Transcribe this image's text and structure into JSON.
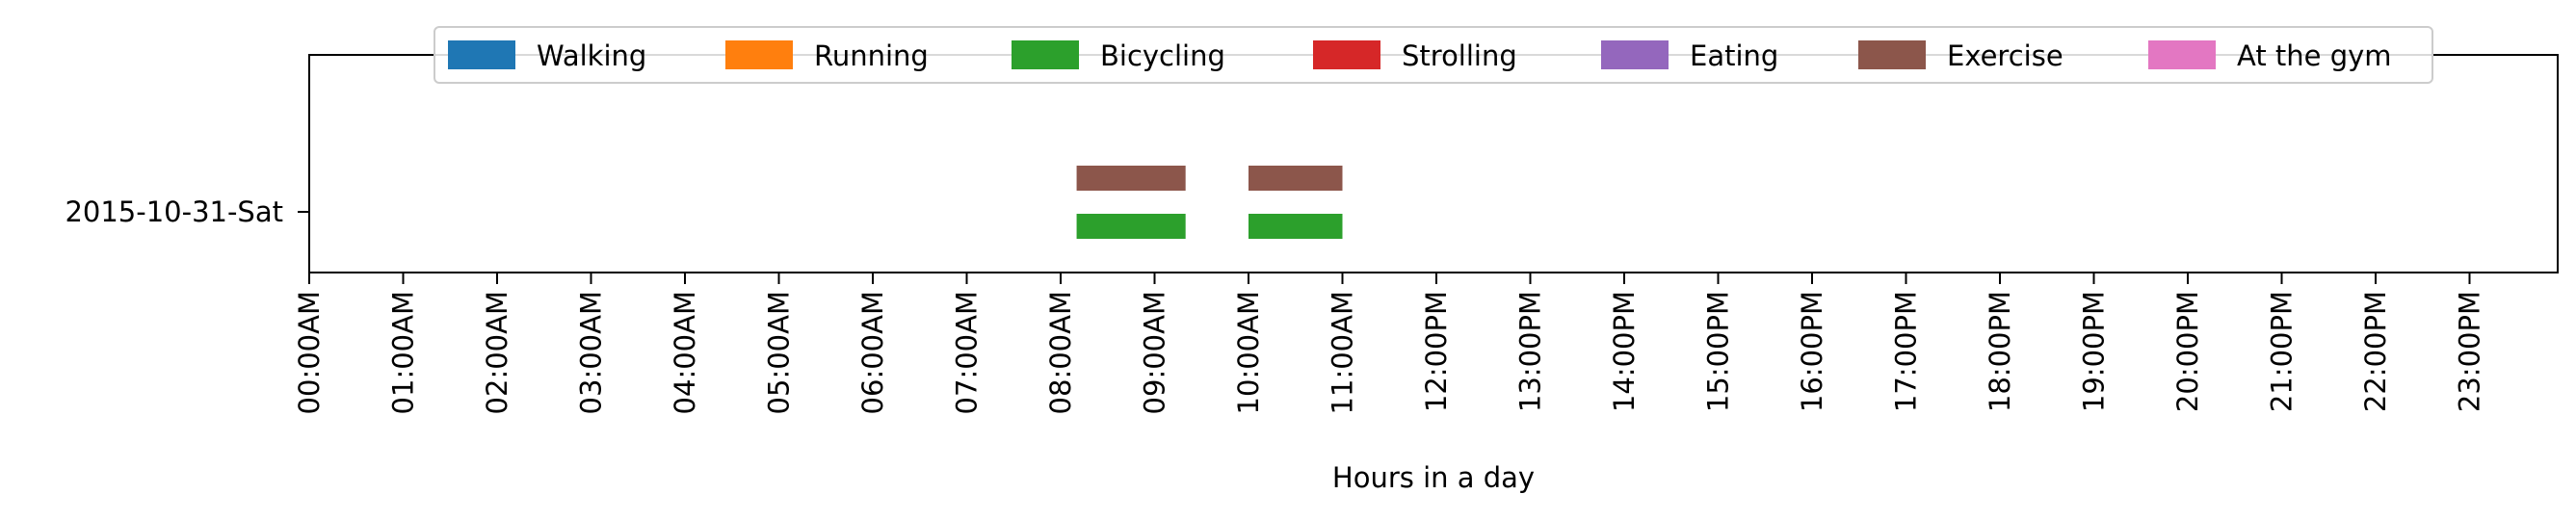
{
  "chart_data": {
    "type": "bar",
    "orientation": "horizontal-timeline",
    "title": "",
    "xlabel": "Hours in a day",
    "ylabel": "",
    "xlim": [
      0,
      24
    ],
    "grid": false,
    "legend_position": "top-center",
    "categories": [
      "2015-10-31-Sat"
    ],
    "x_ticks": [
      0,
      1,
      2,
      3,
      4,
      5,
      6,
      7,
      8,
      9,
      10,
      11,
      12,
      13,
      14,
      15,
      16,
      17,
      18,
      19,
      20,
      21,
      22,
      23
    ],
    "x_tick_labels": [
      "00:00AM",
      "01:00AM",
      "02:00AM",
      "03:00AM",
      "04:00AM",
      "05:00AM",
      "06:00AM",
      "07:00AM",
      "08:00AM",
      "09:00AM",
      "10:00AM",
      "11:00AM",
      "12:00PM",
      "13:00PM",
      "14:00PM",
      "15:00PM",
      "16:00PM",
      "17:00PM",
      "18:00PM",
      "19:00PM",
      "20:00PM",
      "21:00PM",
      "22:00PM",
      "23:00PM"
    ],
    "series": [
      {
        "name": "Walking",
        "color": "#1f77b4",
        "intervals": []
      },
      {
        "name": "Running",
        "color": "#ff7f0e",
        "intervals": []
      },
      {
        "name": "Bicycling",
        "color": "#2ca02c",
        "intervals": [
          {
            "category": "2015-10-31-Sat",
            "start": 8.17,
            "end": 9.33
          },
          {
            "category": "2015-10-31-Sat",
            "start": 10.0,
            "end": 11.0
          }
        ]
      },
      {
        "name": "Strolling",
        "color": "#d62728",
        "intervals": []
      },
      {
        "name": "Eating",
        "color": "#9467bd",
        "intervals": []
      },
      {
        "name": "Exercise",
        "color": "#8c564b",
        "intervals": [
          {
            "category": "2015-10-31-Sat",
            "start": 8.17,
            "end": 9.33
          },
          {
            "category": "2015-10-31-Sat",
            "start": 10.0,
            "end": 11.0
          }
        ]
      },
      {
        "name": "At the gym",
        "color": "#e377c2",
        "intervals": []
      }
    ]
  }
}
